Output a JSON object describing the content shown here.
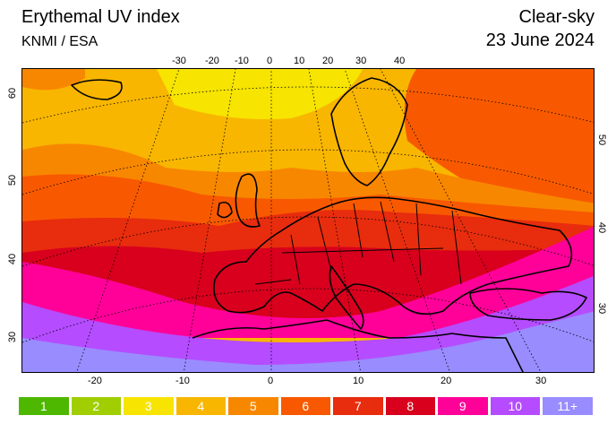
{
  "header": {
    "title": "Erythemal UV index",
    "source": "KNMI / ESA",
    "mode": "Clear-sky",
    "date": "23 June 2024"
  },
  "map": {
    "top_longitude_labels": [
      "-30",
      "-20",
      "-10",
      "0",
      "10",
      "20",
      "30",
      "40"
    ],
    "bottom_longitude_labels": [
      "-20",
      "-10",
      "0",
      "10",
      "20",
      "30"
    ],
    "left_latitude_labels": [
      "60",
      "50",
      "40",
      "30"
    ],
    "right_latitude_labels": [
      "50",
      "40",
      "30"
    ]
  },
  "legend": {
    "items": [
      {
        "label": "1",
        "color": "#4eb700"
      },
      {
        "label": "2",
        "color": "#a0ce00"
      },
      {
        "label": "3",
        "color": "#f7e400"
      },
      {
        "label": "4",
        "color": "#f8b600"
      },
      {
        "label": "5",
        "color": "#f88700"
      },
      {
        "label": "6",
        "color": "#f85900"
      },
      {
        "label": "7",
        "color": "#e82c0e"
      },
      {
        "label": "8",
        "color": "#d8001d"
      },
      {
        "label": "9",
        "color": "#ff0099"
      },
      {
        "label": "10",
        "color": "#b54cff"
      },
      {
        "label": "11+",
        "color": "#998cff"
      }
    ]
  }
}
